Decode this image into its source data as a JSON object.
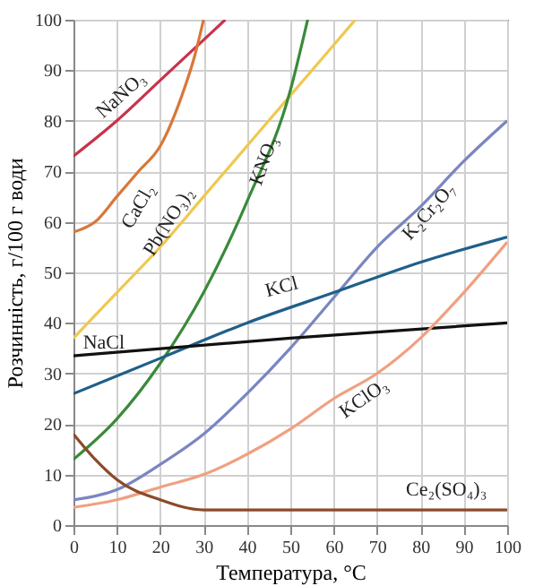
{
  "chart_data": {
    "type": "line",
    "xlabel": "Температура, °C",
    "ylabel": "Розчинність, г/100 г води",
    "xlim": [
      0,
      100
    ],
    "ylim": [
      0,
      100
    ],
    "xticks": [
      0,
      10,
      20,
      30,
      40,
      50,
      60,
      70,
      80,
      90,
      100
    ],
    "yticks": [
      0,
      10,
      20,
      30,
      40,
      50,
      60,
      70,
      80,
      90,
      100
    ],
    "grid": true,
    "legend": false,
    "marker": "none",
    "line_style": "solid",
    "series": [
      {
        "name": "NaNO₃",
        "color": "#c8334a",
        "x": [
          0,
          10,
          20,
          30,
          35
        ],
        "values": [
          73,
          80,
          88,
          96,
          100
        ]
      },
      {
        "name": "CaCl₂",
        "color": "#d9773a",
        "x": [
          0,
          5,
          10,
          15,
          20,
          25,
          28,
          30
        ],
        "values": [
          58,
          60,
          65,
          70,
          75,
          85,
          93,
          100
        ]
      },
      {
        "name": "Pb(NO₃)₂",
        "color": "#f0c850",
        "x": [
          0,
          10,
          20,
          30,
          40,
          50,
          60,
          65
        ],
        "values": [
          37,
          46,
          55,
          65,
          75,
          85,
          95,
          100
        ]
      },
      {
        "name": "KNO₃",
        "color": "#3a8a3a",
        "x": [
          0,
          10,
          20,
          30,
          40,
          50,
          54
        ],
        "values": [
          13,
          21,
          32,
          46,
          64,
          86,
          100
        ]
      },
      {
        "name": "K₂Cr₂O₇",
        "color": "#7a86c0",
        "x": [
          0,
          10,
          20,
          30,
          40,
          50,
          60,
          70,
          80,
          90,
          100
        ],
        "values": [
          5,
          7,
          12,
          18,
          26,
          35,
          45,
          55,
          63,
          72,
          80
        ]
      },
      {
        "name": "KCl",
        "color": "#1f5f8a",
        "x": [
          0,
          20,
          40,
          60,
          80,
          100
        ],
        "values": [
          26,
          33,
          40,
          46,
          52,
          57
        ]
      },
      {
        "name": "NaCl",
        "color": "#111111",
        "x": [
          0,
          50,
          100
        ],
        "values": [
          33.5,
          37,
          40
        ]
      },
      {
        "name": "KClO₃",
        "color": "#f0a080",
        "x": [
          0,
          10,
          20,
          30,
          40,
          50,
          60,
          70,
          80,
          90,
          100
        ],
        "values": [
          3.5,
          5,
          7.5,
          10,
          14,
          19,
          25,
          30,
          37,
          46,
          56
        ]
      },
      {
        "name": "Ce₂(SO₄)₃",
        "color": "#8b4a2a",
        "x": [
          0,
          5,
          10,
          20,
          30,
          40,
          100
        ],
        "values": [
          18,
          13,
          9,
          5,
          3,
          3,
          3
        ]
      }
    ]
  }
}
